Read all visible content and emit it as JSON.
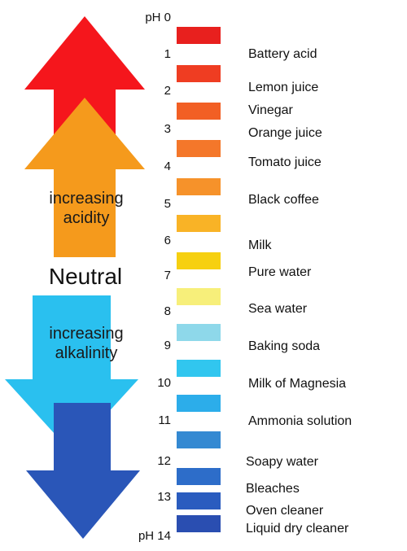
{
  "labels": {
    "acid_line1": "increasing",
    "acid_line2": "acidity",
    "neutral": "Neutral",
    "alk_line1": "increasing",
    "alk_line2": "alkalinity"
  },
  "arrow_colors": {
    "red": "#f5161c",
    "orange": "#f59a1c",
    "light_blue": "#2ac0ef",
    "dark_blue": "#2a56b8"
  },
  "scale": [
    {
      "ph": "pH 0",
      "color": "#e8201e"
    },
    {
      "ph": "1",
      "color": "#ef3d22"
    },
    {
      "ph": "2",
      "color": "#f25f24"
    },
    {
      "ph": "3",
      "color": "#f4772a"
    },
    {
      "ph": "4",
      "color": "#f6922a"
    },
    {
      "ph": "5",
      "color": "#f9b326"
    },
    {
      "ph": "6",
      "color": "#f6d010"
    },
    {
      "ph": "7",
      "color": "#f7ef7a"
    },
    {
      "ph": "8",
      "color": "#8ed8ea"
    },
    {
      "ph": "9",
      "color": "#31c6ef"
    },
    {
      "ph": "10",
      "color": "#2cadea"
    },
    {
      "ph": "11",
      "color": "#3489d2"
    },
    {
      "ph": "12",
      "color": "#2d6dc9"
    },
    {
      "ph": "13",
      "color": "#2a5cbf"
    },
    {
      "ph": "pH 14",
      "color": "#2a4eb1"
    }
  ],
  "substances": [
    "Battery acid",
    "Lemon juice",
    "Vinegar",
    "Orange juice",
    "Tomato juice",
    "Black coffee",
    "Milk",
    "Pure water",
    "Sea water",
    "Baking soda",
    "Milk of Magnesia",
    "Ammonia solution",
    "Soapy water",
    "Bleaches",
    "Oven cleaner",
    "Liquid dry cleaner"
  ]
}
